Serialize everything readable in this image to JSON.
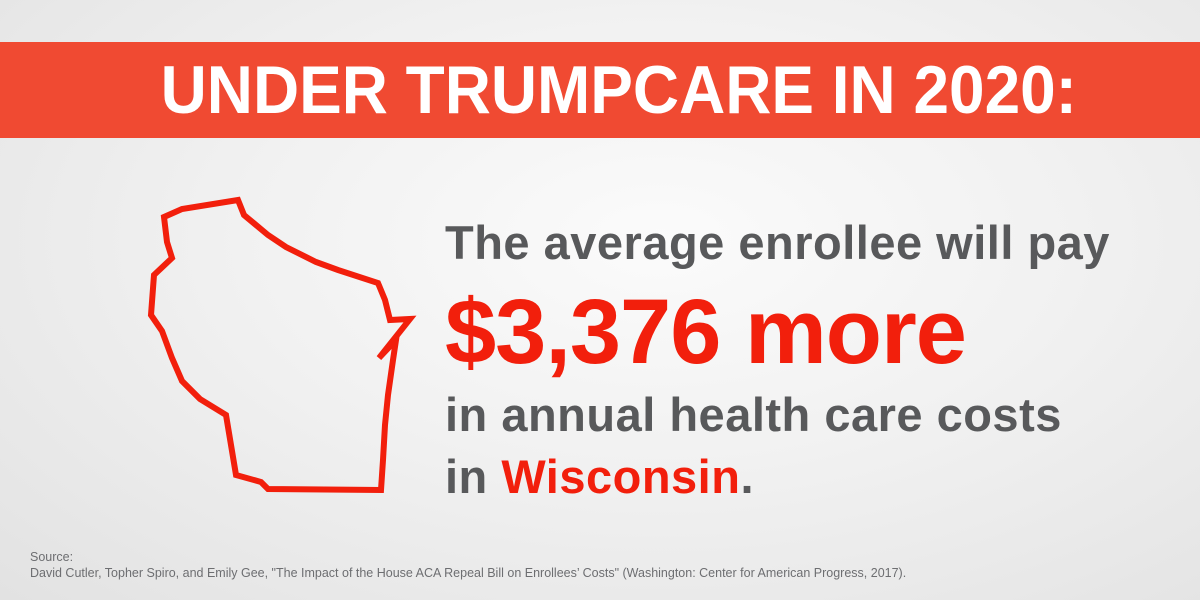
{
  "headline": "UNDER TRUMPCARE IN 2020:",
  "statement": {
    "line1": "The average enrollee will pay",
    "amount": "$3,376 more",
    "line3": "in annual health care costs",
    "line4_prefix": "in ",
    "place": "Wisconsin",
    "line4_suffix": "."
  },
  "state_icon": "wisconsin-outline-icon",
  "source": {
    "label": "Source:",
    "citation": "David Cutler, Topher Spiro, and Emily Gee, \"The Impact of the House ACA Repeal Bill on Enrollees’ Costs\" (Washington: Center for American Progress, 2017)."
  },
  "colors": {
    "banner": "#f04a32",
    "accent": "#f21f0c",
    "text": "#58595b",
    "source_text": "#6d6e71"
  }
}
